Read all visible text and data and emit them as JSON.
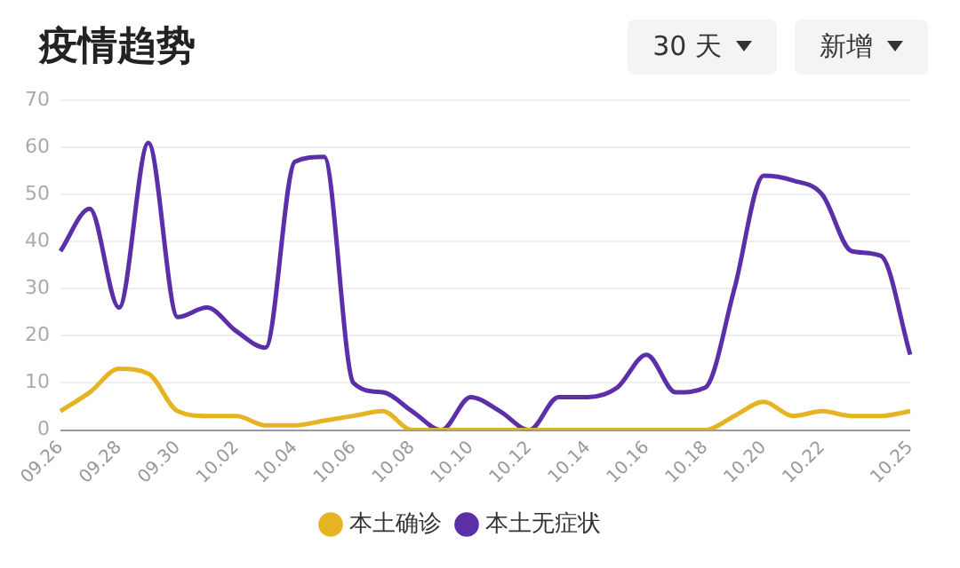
{
  "chart_data": {
    "type": "line",
    "title": "疫情趋势",
    "annotations": [
      "30 天",
      "新增"
    ],
    "categories": [
      "09.26",
      null,
      "09.28",
      null,
      "09.30",
      null,
      "10.02",
      null,
      "10.04",
      null,
      "10.06",
      null,
      "10.08",
      null,
      "10.10",
      null,
      "10.12",
      null,
      "10.14",
      null,
      "10.16",
      null,
      "10.18",
      null,
      "10.20",
      null,
      "10.22",
      null,
      null,
      "10.25"
    ],
    "series": [
      {
        "name": "本土确诊",
        "color": "#e6b422",
        "values": [
          4,
          8,
          13,
          12,
          4,
          3,
          3,
          1,
          1,
          2,
          3,
          4,
          0,
          0,
          0,
          0,
          0,
          0,
          0,
          0,
          0,
          0,
          0,
          3,
          6,
          3,
          4,
          3,
          3,
          4
        ]
      },
      {
        "name": "本土无症状",
        "color": "#5b2fa8",
        "values": [
          38,
          47,
          26,
          61,
          24,
          26,
          21,
          17.5,
          57,
          58,
          10,
          8,
          4,
          0,
          7,
          4,
          0,
          7,
          7,
          9,
          16,
          8,
          9,
          30,
          54,
          53,
          50,
          38,
          37,
          16
        ]
      }
    ],
    "ylim": [
      0,
      70
    ],
    "yticks": [
      0,
      10,
      20,
      30,
      40,
      50,
      60,
      70
    ],
    "grid": "y",
    "legend": "bottom",
    "marker": "none",
    "line_style": "solid"
  }
}
